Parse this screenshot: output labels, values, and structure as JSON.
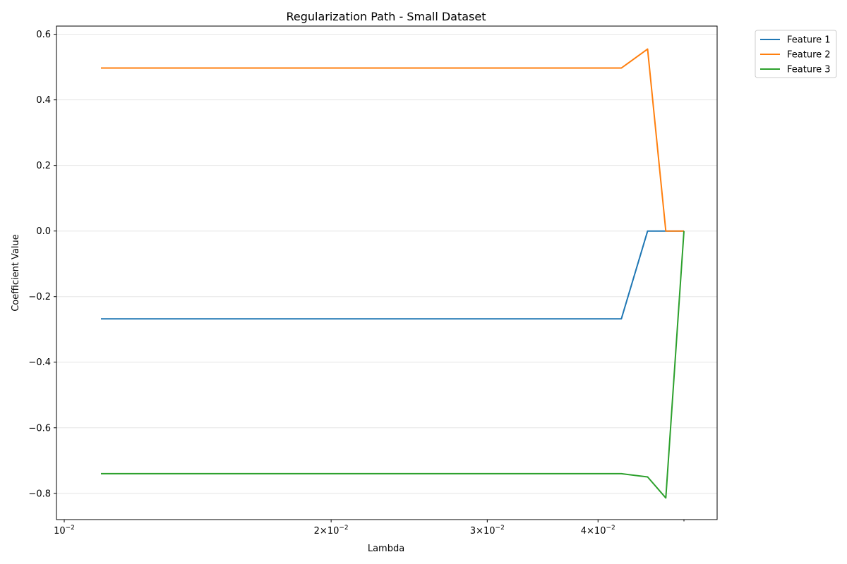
{
  "chart_data": {
    "type": "line",
    "title": "Regularization Path - Small Dataset",
    "xlabel": "Lambda",
    "ylabel": "Coefficient Value",
    "xscale": "log",
    "xlim": [
      0.0098,
      0.0545
    ],
    "ylim": [
      -0.88,
      0.625
    ],
    "xticks": [
      {
        "value": 0.01,
        "base": "10",
        "exp": "−2",
        "mantissa": ""
      },
      {
        "value": 0.02,
        "base": "10",
        "exp": "−2",
        "mantissa": "2×"
      },
      {
        "value": 0.03,
        "base": "10",
        "exp": "−2",
        "mantissa": "3×"
      },
      {
        "value": 0.04,
        "base": "10",
        "exp": "−2",
        "mantissa": "4×"
      }
    ],
    "yticks": [
      {
        "value": 0.6,
        "label": "0.6"
      },
      {
        "value": 0.4,
        "label": "0.4"
      },
      {
        "value": 0.2,
        "label": "0.2"
      },
      {
        "value": 0.0,
        "label": "0.0"
      },
      {
        "value": -0.2,
        "label": "−0.2"
      },
      {
        "value": -0.4,
        "label": "−0.4"
      },
      {
        "value": -0.6,
        "label": "−0.6"
      },
      {
        "value": -0.8,
        "label": "−0.8"
      }
    ],
    "grid": "y",
    "legend_position": "outside-top-right",
    "x": [
      0.011,
      0.0425,
      0.0455,
      0.0477,
      0.05
    ],
    "series": [
      {
        "name": "Feature 1",
        "color": "#1f77b4",
        "values": [
          -0.268,
          -0.268,
          0.0,
          0.0,
          0.0
        ]
      },
      {
        "name": "Feature 2",
        "color": "#ff7f0e",
        "values": [
          0.497,
          0.497,
          0.555,
          0.0,
          0.0
        ]
      },
      {
        "name": "Feature 3",
        "color": "#2ca02c",
        "values": [
          -0.74,
          -0.74,
          -0.75,
          -0.814,
          0.0
        ]
      }
    ]
  }
}
